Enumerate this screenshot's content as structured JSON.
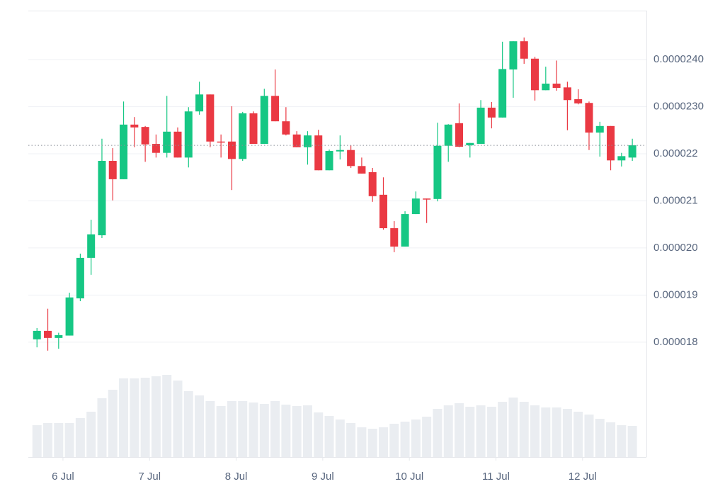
{
  "chart_data": {
    "type": "candlestick",
    "up_color": "#16c784",
    "down_color": "#ea3943",
    "volume_color": "#eaedf1",
    "grid": true,
    "xlim": [
      -0.8,
      56.3
    ],
    "xticks": [
      {
        "value": 2.4,
        "label": "6 Jul"
      },
      {
        "value": 10.4,
        "label": "7 Jul"
      },
      {
        "value": 18.4,
        "label": "8 Jul"
      },
      {
        "value": 26.4,
        "label": "9 Jul"
      },
      {
        "value": 34.4,
        "label": "10 Jul"
      },
      {
        "value": 42.4,
        "label": "11 Jul"
      },
      {
        "value": 50.4,
        "label": "12 Jul"
      }
    ],
    "ylim": [
      1.556e-05,
      2.504e-05
    ],
    "yticks": [
      {
        "value": 1.8e-05,
        "label": "0.000018"
      },
      {
        "value": 1.9e-05,
        "label": "0.000019"
      },
      {
        "value": 2e-05,
        "label": "0.000020"
      },
      {
        "value": 2.1e-05,
        "label": "0.000021"
      },
      {
        "value": 2.2e-05,
        "label": "0.000022"
      },
      {
        "value": 2.3e-05,
        "label": "0.0000230"
      },
      {
        "value": 2.4e-05,
        "label": "0.0000240"
      }
    ],
    "open": [
      1.806e-05,
      1.824e-05,
      1.809e-05,
      1.814e-05,
      1.893e-05,
      1.979e-05,
      2.027e-05,
      2.185e-05,
      2.146e-05,
      2.262e-05,
      2.257e-05,
      2.221e-05,
      2.202e-05,
      2.247e-05,
      2.192e-05,
      2.29e-05,
      2.326e-05,
      2.226e-05,
      2.226e-05,
      2.189e-05,
      2.286e-05,
      2.221e-05,
      2.323e-05,
      2.269e-05,
      2.241e-05,
      2.214e-05,
      2.239e-05,
      2.165e-05,
      2.205e-05,
      2.208e-05,
      2.174e-05,
      2.161e-05,
      2.113e-05,
      2.042e-05,
      2.003e-05,
      2.072e-05,
      2.105e-05,
      2.104e-05,
      2.217e-05,
      2.265e-05,
      2.218e-05,
      2.221e-05,
      2.298e-05,
      2.277e-05,
      2.379e-05,
      2.439e-05,
      2.402e-05,
      2.335e-05,
      2.349e-05,
      2.341e-05,
      2.316e-05,
      2.308e-05,
      2.245e-05,
      2.259e-05,
      2.186e-05,
      2.192e-05
    ],
    "high": [
      1.83e-05,
      1.871e-05,
      1.82e-05,
      1.905e-05,
      1.988e-05,
      2.06e-05,
      2.232e-05,
      2.212e-05,
      2.311e-05,
      2.278e-05,
      2.259e-05,
      2.241e-05,
      2.323e-05,
      2.256e-05,
      2.299e-05,
      2.353e-05,
      2.326e-05,
      2.241e-05,
      2.301e-05,
      2.289e-05,
      2.29e-05,
      2.338e-05,
      2.379e-05,
      2.299e-05,
      2.248e-05,
      2.248e-05,
      2.251e-05,
      2.209e-05,
      2.239e-05,
      2.218e-05,
      2.192e-05,
      2.17e-05,
      2.15e-05,
      2.057e-05,
      2.078e-05,
      2.12e-05,
      2.105e-05,
      2.266e-05,
      2.263e-05,
      2.307e-05,
      2.223e-05,
      2.314e-05,
      2.31e-05,
      2.438e-05,
      2.439e-05,
      2.447e-05,
      2.406e-05,
      2.385e-05,
      2.398e-05,
      2.353e-05,
      2.337e-05,
      2.311e-05,
      2.268e-05,
      2.259e-05,
      2.202e-05,
      2.232e-05
    ],
    "low": [
      1.789e-05,
      1.782e-05,
      1.786e-05,
      1.814e-05,
      1.887e-05,
      1.943e-05,
      2.021e-05,
      2.101e-05,
      2.146e-05,
      2.214e-05,
      2.183e-05,
      2.192e-05,
      2.192e-05,
      2.192e-05,
      2.171e-05,
      2.283e-05,
      2.214e-05,
      2.192e-05,
      2.123e-05,
      2.185e-05,
      2.221e-05,
      2.221e-05,
      2.269e-05,
      2.239e-05,
      2.214e-05,
      2.177e-05,
      2.165e-05,
      2.165e-05,
      2.188e-05,
      2.17e-05,
      2.158e-05,
      2.098e-05,
      2.039e-05,
      1.991e-05,
      2.003e-05,
      2.072e-05,
      2.053e-05,
      2.099e-05,
      2.183e-05,
      2.214e-05,
      2.192e-05,
      2.221e-05,
      2.254e-05,
      2.277e-05,
      2.319e-05,
      2.391e-05,
      2.313e-05,
      2.335e-05,
      2.334e-05,
      2.25e-05,
      2.305e-05,
      2.208e-05,
      2.194e-05,
      2.165e-05,
      2.173e-05,
      2.185e-05
    ],
    "close": [
      1.824e-05,
      1.809e-05,
      1.815e-05,
      1.895e-05,
      1.979e-05,
      2.029e-05,
      2.185e-05,
      2.146e-05,
      2.262e-05,
      2.256e-05,
      2.22e-05,
      2.202e-05,
      2.247e-05,
      2.192e-05,
      2.29e-05,
      2.326e-05,
      2.226e-05,
      2.224e-05,
      2.189e-05,
      2.286e-05,
      2.221e-05,
      2.323e-05,
      2.269e-05,
      2.241e-05,
      2.214e-05,
      2.239e-05,
      2.165e-05,
      2.206e-05,
      2.208e-05,
      2.174e-05,
      2.158e-05,
      2.11e-05,
      2.042e-05,
      2.003e-05,
      2.072e-05,
      2.105e-05,
      2.104e-05,
      2.217e-05,
      2.262e-05,
      2.215e-05,
      2.223e-05,
      2.298e-05,
      2.277e-05,
      2.38e-05,
      2.439e-05,
      2.402e-05,
      2.335e-05,
      2.349e-05,
      2.34e-05,
      2.314e-05,
      2.307e-05,
      2.245e-05,
      2.259e-05,
      2.186e-05,
      2.195e-05,
      2.218e-05
    ],
    "volume": [
      45,
      48,
      48,
      48,
      55,
      64,
      83,
      95,
      111,
      111,
      112,
      114,
      116,
      108,
      93,
      87,
      79,
      72,
      79,
      79,
      77,
      75,
      79,
      74,
      72,
      73,
      63,
      58,
      53,
      48,
      42,
      40,
      42,
      47,
      50,
      53,
      57,
      68,
      73,
      76,
      71,
      73,
      71,
      78,
      84,
      78,
      73,
      70,
      70,
      68,
      64,
      60,
      54,
      49,
      45,
      44
    ]
  }
}
